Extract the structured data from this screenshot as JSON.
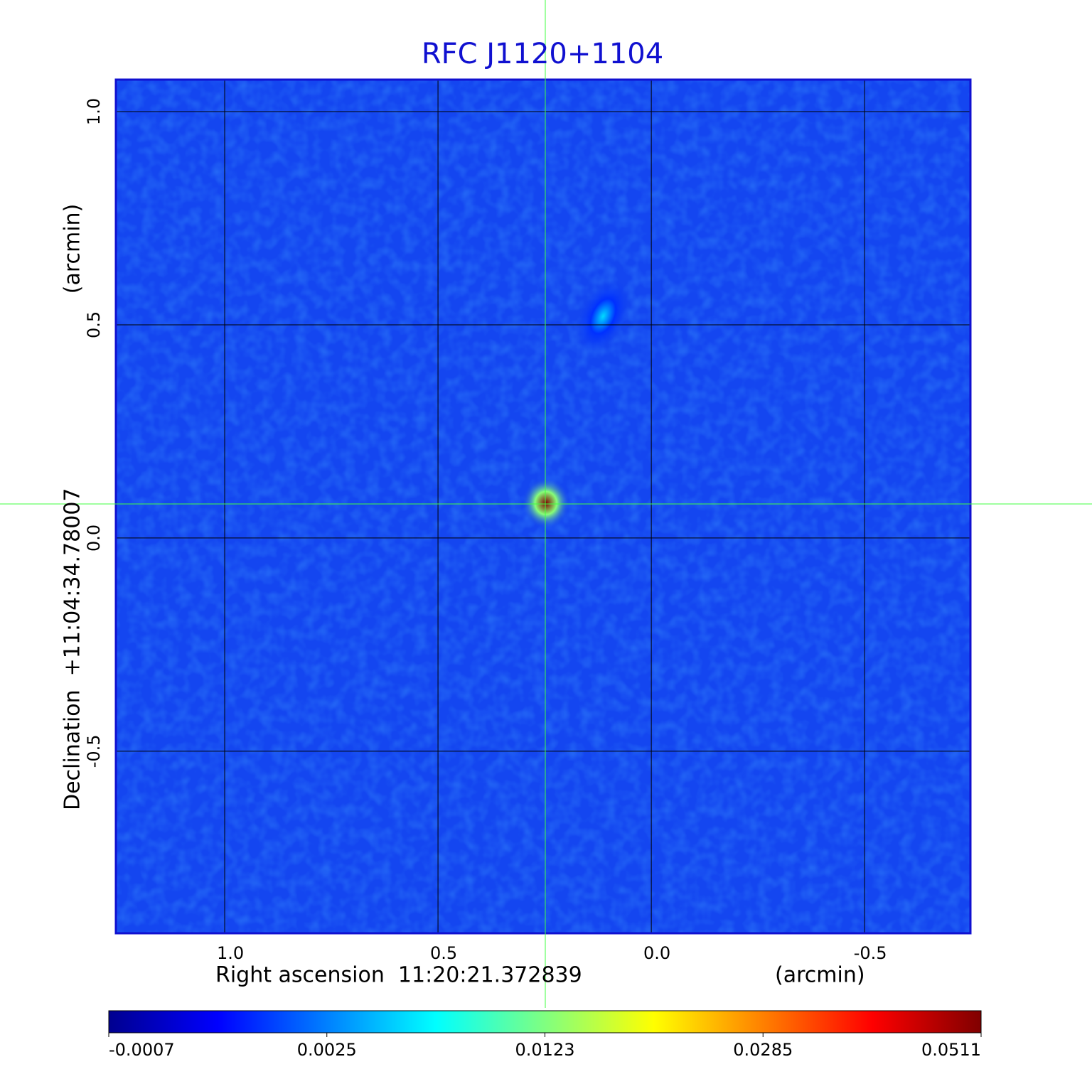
{
  "chart_data": {
    "type": "image",
    "title": "RFC J1120+1104",
    "x_label": "Right ascension  11:20:21.372839",
    "x_unit": "(arcmin)",
    "y_label": "Declination  +11:04:34.78007",
    "y_unit": "(arcmin)",
    "xlim": [
      1.255,
      -0.748
    ],
    "ylim": [
      -0.927,
      1.075
    ],
    "xticks": [
      {
        "value": 1,
        "label": "1.0"
      },
      0.5,
      {
        "value": 0,
        "label": "0.0"
      },
      -0.5
    ],
    "yticks": [
      -0.5,
      {
        "value": 0,
        "label": "0.0"
      },
      0.5,
      {
        "value": 1,
        "label": "1.0"
      }
    ],
    "grid": true,
    "sources": [
      {
        "x": 0.247,
        "y": 0.082,
        "peak": 0.0511
      },
      {
        "x": 0.113,
        "y": 0.52,
        "peak": 0.006
      }
    ],
    "colorbar_ticks": [
      -0.0007,
      0.0025,
      0.0123,
      0.0285,
      0.0511
    ],
    "colormap": [
      "#00008f",
      "#0000ff",
      "#0080ff",
      "#00ffff",
      "#80ff80",
      "#ffff00",
      "#ff8000",
      "#ff0000",
      "#800000"
    ]
  }
}
